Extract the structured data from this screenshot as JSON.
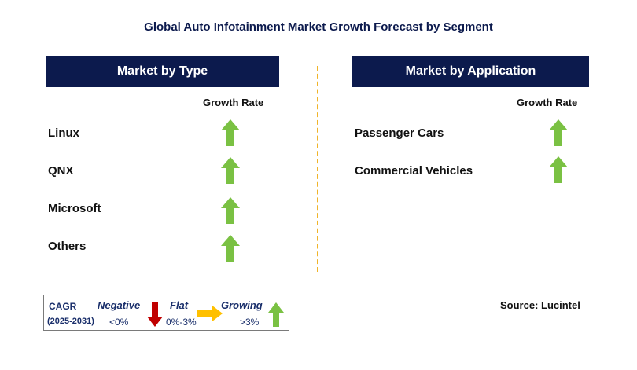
{
  "title": "Global Auto Infotainment Market Growth Forecast by Segment",
  "left_panel": {
    "header": "Market by Type",
    "column_label": "Growth Rate",
    "rows": [
      {
        "label": "Linux",
        "trend": "growing"
      },
      {
        "label": "QNX",
        "trend": "growing"
      },
      {
        "label": "Microsoft",
        "trend": "growing"
      },
      {
        "label": "Others",
        "trend": "growing"
      }
    ]
  },
  "right_panel": {
    "header": "Market by Application",
    "column_label": "Growth Rate",
    "rows": [
      {
        "label": "Passenger Cars",
        "trend": "growing"
      },
      {
        "label": "Commercial Vehicles",
        "trend": "growing"
      }
    ]
  },
  "legend": {
    "cagr_label": "CAGR",
    "period": "(2025-2031)",
    "negative": {
      "label": "Negative",
      "range": "<0%",
      "icon": "down-arrow-icon",
      "color": "#c00000"
    },
    "flat": {
      "label": "Flat",
      "range": "0%-3%",
      "icon": "right-arrow-icon",
      "color": "#ffc000"
    },
    "growing": {
      "label": "Growing",
      "range": ">3%",
      "icon": "up-arrow-icon",
      "color": "#7ac143"
    }
  },
  "source": "Source: Lucintel",
  "colors": {
    "header_bg": "#0c1a4d",
    "divider": "#f0b429",
    "growing_arrow": "#7ac143"
  }
}
